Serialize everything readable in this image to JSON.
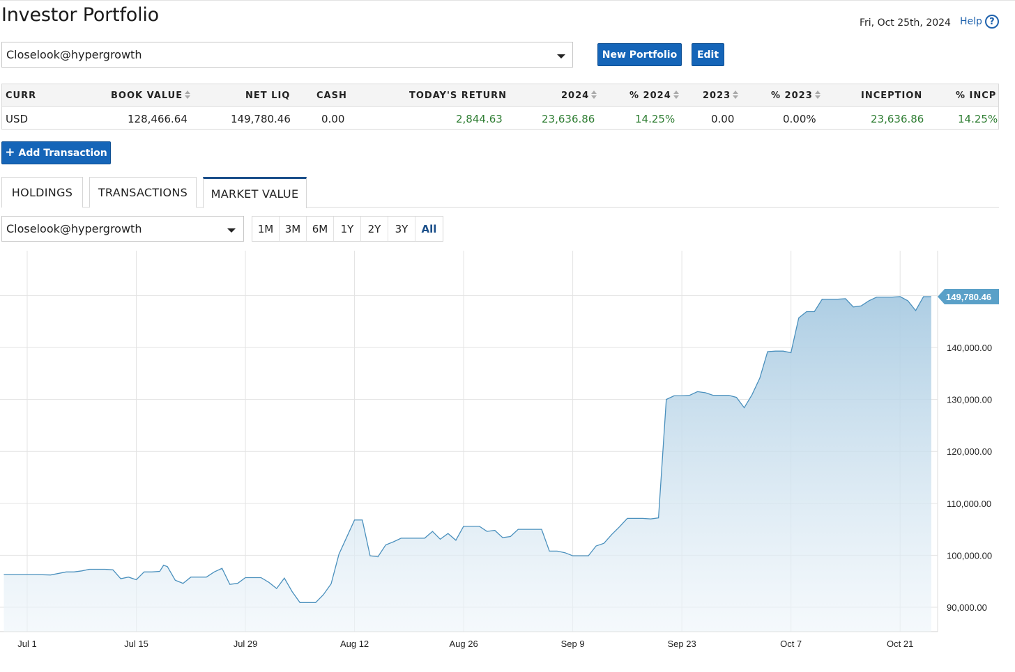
{
  "header": {
    "title": "Investor Portfolio",
    "date": "Fri, Oct 25th, 2024",
    "help_label": "Help",
    "help_icon": "question-circle-icon"
  },
  "portfolio_select": {
    "value": "Closelook@hypergrowth"
  },
  "buttons": {
    "new_portfolio": "New Portfolio",
    "edit": "Edit",
    "add_transaction": "Add Transaction",
    "add_icon": "plus-icon"
  },
  "summary_table": {
    "headers": [
      "CURR",
      "BOOK VALUE",
      "NET LIQ",
      "CASH",
      "TODAY'S RETURN",
      "2024",
      "% 2024",
      "2023",
      "% 2023",
      "INCEPTION",
      "% INCP"
    ],
    "row": [
      "USD",
      "128,466.64",
      "149,780.46",
      "0.00",
      "2,844.63",
      "23,636.86",
      "14.25%",
      "0.00",
      "0.00%",
      "23,636.86",
      "14.25%"
    ]
  },
  "tabs": [
    "HOLDINGS",
    "TRANSACTIONS",
    "MARKET VALUE"
  ],
  "active_tab": "MARKET VALUE",
  "chart_select": {
    "value": "Closelook@hypergrowth"
  },
  "ranges": [
    "1M",
    "3M",
    "6M",
    "1Y",
    "2Y",
    "3Y",
    "All"
  ],
  "active_range": "All",
  "colors": {
    "accent": "#1565b8",
    "positive": "#2e7d32",
    "series_line": "#4a90bd",
    "flag": "#5aa0c8"
  },
  "chart_data": {
    "type": "area",
    "title": "",
    "xlabel": "",
    "ylabel": "",
    "x_ticks": [
      "Jul 1",
      "Jul 15",
      "Jul 29",
      "Aug 12",
      "Aug 26",
      "Sep 9",
      "Sep 23",
      "Oct 7",
      "Oct 21"
    ],
    "y_ticks": [
      "90,000.00",
      "100,000.00",
      "110,000.00",
      "120,000.00",
      "130,000.00",
      "140,000.00"
    ],
    "ylim": [
      85000,
      159000
    ],
    "y_axis_position": "right",
    "grid": true,
    "current_value_label": "149,780.46",
    "x_unit": "days from Jul 1",
    "series": [
      {
        "values": [
          [
            -3,
            96300
          ],
          [
            -1,
            96300
          ],
          [
            1,
            96300
          ],
          [
            3,
            96200
          ],
          [
            5,
            96800
          ],
          [
            6,
            96800
          ],
          [
            7,
            97000
          ],
          [
            8,
            97300
          ],
          [
            10,
            97300
          ],
          [
            11,
            97200
          ],
          [
            12,
            95500
          ],
          [
            13,
            95800
          ],
          [
            14,
            95300
          ],
          [
            15,
            96800
          ],
          [
            16,
            96800
          ],
          [
            17,
            96900
          ],
          [
            17.5,
            98100
          ],
          [
            18,
            97800
          ],
          [
            19,
            95200
          ],
          [
            20,
            94600
          ],
          [
            21,
            95800
          ],
          [
            22,
            95800
          ],
          [
            23,
            95800
          ],
          [
            24,
            96800
          ],
          [
            25,
            97500
          ],
          [
            26,
            94400
          ],
          [
            27,
            94600
          ],
          [
            28,
            95700
          ],
          [
            29,
            95700
          ],
          [
            30,
            95700
          ],
          [
            31,
            94800
          ],
          [
            32,
            93600
          ],
          [
            33,
            95600
          ],
          [
            34,
            93000
          ],
          [
            35,
            90900
          ],
          [
            36,
            90900
          ],
          [
            37,
            90900
          ],
          [
            38,
            92400
          ],
          [
            39,
            94500
          ],
          [
            40,
            100200
          ],
          [
            41,
            103500
          ],
          [
            42,
            106800
          ],
          [
            43,
            106800
          ],
          [
            44,
            99900
          ],
          [
            45,
            99700
          ],
          [
            46,
            102000
          ],
          [
            47,
            102600
          ],
          [
            48,
            103300
          ],
          [
            49,
            103300
          ],
          [
            50,
            103300
          ],
          [
            51,
            103300
          ],
          [
            52,
            104600
          ],
          [
            53,
            103100
          ],
          [
            54,
            104200
          ],
          [
            55,
            102900
          ],
          [
            56,
            105600
          ],
          [
            57,
            105600
          ],
          [
            58,
            105600
          ],
          [
            59,
            104600
          ],
          [
            60,
            104800
          ],
          [
            61,
            103400
          ],
          [
            62,
            103600
          ],
          [
            63,
            105000
          ],
          [
            64,
            105000
          ],
          [
            65,
            105000
          ],
          [
            66,
            105000
          ],
          [
            67,
            100800
          ],
          [
            68,
            100800
          ],
          [
            69,
            100500
          ],
          [
            70,
            99900
          ],
          [
            71,
            99900
          ],
          [
            72,
            99900
          ],
          [
            73,
            101800
          ],
          [
            74,
            102300
          ],
          [
            75,
            104000
          ],
          [
            76,
            105500
          ],
          [
            77,
            107100
          ],
          [
            78,
            107100
          ],
          [
            79,
            107100
          ],
          [
            80,
            107000
          ],
          [
            81,
            107200
          ],
          [
            82,
            130000
          ],
          [
            83,
            130700
          ],
          [
            84,
            130700
          ],
          [
            85,
            130800
          ],
          [
            86,
            131500
          ],
          [
            87,
            131300
          ],
          [
            88,
            130800
          ],
          [
            89,
            130800
          ],
          [
            90,
            130800
          ],
          [
            91,
            130400
          ],
          [
            92,
            128400
          ],
          [
            93,
            130900
          ],
          [
            94,
            134100
          ],
          [
            95,
            139200
          ],
          [
            96,
            139300
          ],
          [
            97,
            139300
          ],
          [
            98,
            139000
          ],
          [
            99,
            145700
          ],
          [
            100,
            146900
          ],
          [
            101,
            146900
          ],
          [
            102,
            149300
          ],
          [
            103,
            149300
          ],
          [
            104,
            149300
          ],
          [
            105,
            149400
          ],
          [
            106,
            147800
          ],
          [
            107,
            148000
          ],
          [
            108,
            149000
          ],
          [
            109,
            149700
          ],
          [
            110,
            149700
          ],
          [
            111,
            149700
          ],
          [
            112,
            149800
          ],
          [
            113,
            149000
          ],
          [
            114,
            147100
          ],
          [
            115,
            149780
          ],
          [
            116,
            149780
          ]
        ]
      }
    ]
  }
}
